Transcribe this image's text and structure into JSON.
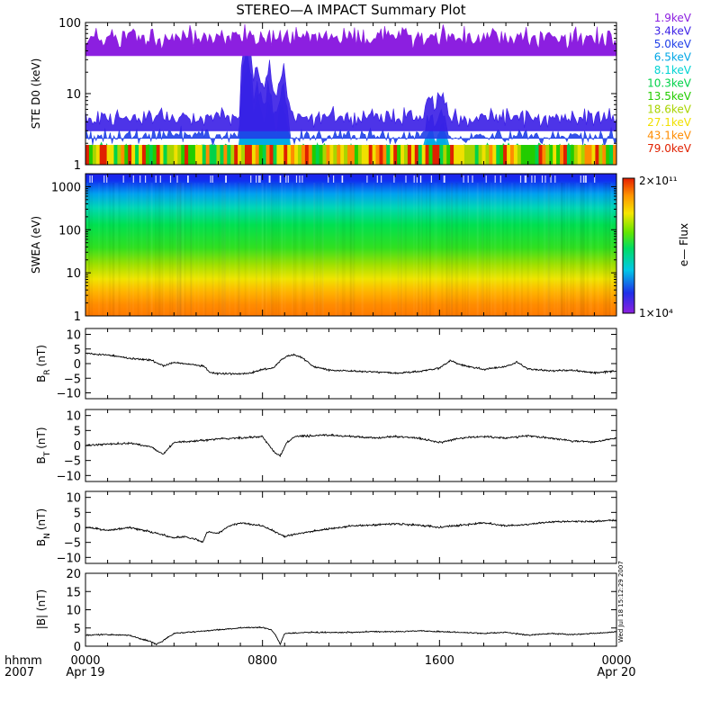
{
  "title": "STEREO—A IMPACT Summary Plot",
  "timestamp_label": "Wed Jul 18 15:12:29 2007",
  "time_axis": {
    "row_label": "hhmm",
    "year_label": "2007",
    "ticks": [
      {
        "label": "0000",
        "sub": "Apr 19",
        "hour": 0
      },
      {
        "label": "0800",
        "sub": "",
        "hour": 8
      },
      {
        "label": "1600",
        "sub": "",
        "hour": 16
      },
      {
        "label": "0000",
        "sub": "Apr 20",
        "hour": 24
      }
    ]
  },
  "colorbar": {
    "max_label": "2×10¹¹",
    "min_label": "1×10⁴",
    "label": "e— Flux"
  },
  "chart_data": [
    {
      "id": "ste",
      "type": "line",
      "ylabel": "STE D0 (keV)",
      "yscale": "log",
      "ylim": [
        1,
        100
      ],
      "yticks": [
        "1",
        "10",
        "100"
      ],
      "yticks_values": [
        1,
        10,
        100
      ],
      "xlim_hours": [
        0,
        24
      ],
      "note": "Multi-channel electron count traces; levels in data units per channel, spikes (hour, value) approximate",
      "channels": [
        {
          "name": "1.9keV",
          "color": "#8c1fe0",
          "base": 62,
          "spread": 0.22
        },
        {
          "name": "3.4keV",
          "color": "#3a1ee6",
          "base": 4.6,
          "spread": 0.18
        },
        {
          "name": "5.0keV",
          "color": "#1f3fe8",
          "base": 3.6,
          "spread": 0.16
        },
        {
          "name": "6.5keV",
          "color": "#00a6e6",
          "base": 2.3,
          "spread": 0.12
        },
        {
          "name": "8.1keV",
          "color": "#00d3d3",
          "base": 1.9,
          "spread": 0.1
        },
        {
          "name": "10.3keV",
          "color": "#00d24a",
          "base": 1.75,
          "spread": 0.08
        },
        {
          "name": "13.5keV",
          "color": "#23cc00",
          "base": 1.6,
          "spread": 0.07
        },
        {
          "name": "18.6keV",
          "color": "#a9d400",
          "base": 1.45,
          "spread": 0.06
        },
        {
          "name": "27.1keV",
          "color": "#f0e000",
          "base": 1.3,
          "spread": 0.06
        },
        {
          "name": "43.1keV",
          "color": "#ff8c00",
          "base": 1.2,
          "spread": 0.05
        },
        {
          "name": "79.0keV",
          "color": "#e02000",
          "base": 1.1,
          "spread": 0.04
        }
      ],
      "events": [
        {
          "hour": 7.3,
          "peak": 90
        },
        {
          "hour": 7.8,
          "peak": 35
        },
        {
          "hour": 8.3,
          "peak": 30
        },
        {
          "hour": 8.9,
          "peak": 28
        },
        {
          "hour": 15.6,
          "peak": 12
        },
        {
          "hour": 16.1,
          "peak": 13
        }
      ]
    },
    {
      "id": "swea",
      "type": "heatmap",
      "ylabel": "SWEA (eV)",
      "yscale": "log",
      "ylim": [
        1,
        2000
      ],
      "yticks": [
        "1",
        "10",
        "100",
        "1000"
      ],
      "yticks_values": [
        1,
        10,
        100,
        1000
      ],
      "xlim_hours": [
        0,
        24
      ],
      "zscale": "log",
      "zlim": [
        10000,
        200000000000
      ],
      "color_stops": [
        "#8c1fe0",
        "#1f2fe8",
        "#00c8e6",
        "#00dc64",
        "#64e600",
        "#f5e600",
        "#ff9600",
        "#e61e00"
      ]
    },
    {
      "id": "br",
      "type": "line",
      "ylabel": "B",
      "ylabel_sub": "R",
      "ylabel_unit": "(nT)",
      "ylim": [
        -12,
        12
      ],
      "yticks": [
        "10",
        "5",
        "0",
        "−5",
        "−10"
      ],
      "yticks_values": [
        10,
        5,
        0,
        -5,
        -10
      ],
      "xlim_hours": [
        0,
        24
      ],
      "hours": [
        0,
        1,
        2,
        3,
        3.5,
        4,
        5,
        5.4,
        5.6,
        6,
        7,
        7.5,
        8,
        8.5,
        8.8,
        9.1,
        9.4,
        9.8,
        10.3,
        11,
        12,
        13,
        14,
        15,
        16,
        16.5,
        17,
        18,
        19,
        19.5,
        20,
        21,
        22,
        23,
        24
      ],
      "values": [
        3.5,
        3,
        1.8,
        1.2,
        -0.8,
        0.5,
        -0.5,
        -1,
        -3,
        -3.5,
        -3.5,
        -3.2,
        -2,
        -1.5,
        1,
        2.5,
        3,
        2,
        -1,
        -2.2,
        -2.5,
        -2.8,
        -3.2,
        -2.8,
        -1.5,
        1,
        -0.5,
        -2,
        -1,
        0.5,
        -1.8,
        -2.5,
        -2.2,
        -3.2,
        -2.5
      ]
    },
    {
      "id": "bt",
      "type": "line",
      "ylabel": "B",
      "ylabel_sub": "T",
      "ylabel_unit": "(nT)",
      "ylim": [
        -12,
        12
      ],
      "yticks": [
        "10",
        "5",
        "0",
        "−5",
        "−10"
      ],
      "yticks_values": [
        10,
        5,
        0,
        -5,
        -10
      ],
      "xlim_hours": [
        0,
        24
      ],
      "hours": [
        0,
        1,
        2,
        3,
        3.5,
        4,
        5,
        6,
        7,
        8,
        8.5,
        8.8,
        9.1,
        9.5,
        10,
        11,
        12,
        13,
        14,
        15,
        16,
        17,
        18,
        19,
        20,
        21,
        22,
        23,
        24
      ],
      "values": [
        0,
        0.5,
        0.8,
        -0.5,
        -3,
        1,
        1.5,
        2.2,
        2.5,
        3,
        -2,
        -3.5,
        1,
        3,
        3.2,
        3.5,
        3,
        2.5,
        3,
        2.5,
        1,
        2.5,
        3,
        2.5,
        3.2,
        2.5,
        1.5,
        1.2,
        2.5
      ]
    },
    {
      "id": "bn",
      "type": "line",
      "ylabel": "B",
      "ylabel_sub": "N",
      "ylabel_unit": "(nT)",
      "ylim": [
        -12,
        12
      ],
      "yticks": [
        "10",
        "5",
        "0",
        "−5",
        "−10"
      ],
      "yticks_values": [
        10,
        5,
        0,
        -5,
        -10
      ],
      "xlim_hours": [
        0,
        24
      ],
      "hours": [
        0,
        1,
        2,
        3,
        3.5,
        4,
        4.5,
        5,
        5.3,
        5.5,
        6,
        6.5,
        7,
        8,
        9,
        10,
        11,
        12,
        13,
        14,
        15,
        16,
        17,
        18,
        19,
        20,
        21,
        22,
        23,
        24
      ],
      "values": [
        0,
        -1,
        0,
        -1.5,
        -2.5,
        -3.5,
        -3,
        -4,
        -5,
        -1.5,
        -2,
        0.5,
        1.5,
        0.5,
        -3,
        -1.5,
        -0.5,
        0.5,
        0.8,
        1.2,
        0.8,
        0,
        0.8,
        1.5,
        0.5,
        1,
        1.8,
        2,
        2,
        2.5
      ]
    },
    {
      "id": "bmag",
      "type": "line",
      "ylabel": "|B| (nT)",
      "ylim": [
        0,
        20
      ],
      "yticks": [
        "20",
        "15",
        "10",
        "5",
        "0"
      ],
      "yticks_values": [
        20,
        15,
        10,
        5,
        0
      ],
      "xlim_hours": [
        0,
        24
      ],
      "hours": [
        0,
        1,
        2,
        2.5,
        3,
        3.2,
        3.5,
        4,
        5,
        6,
        7,
        8,
        8.4,
        8.6,
        8.8,
        9,
        10,
        11,
        12,
        13,
        14,
        15,
        16,
        17,
        18,
        19,
        20,
        21,
        22,
        23,
        24
      ],
      "values": [
        3,
        3.2,
        3,
        2,
        1.2,
        0.5,
        1.5,
        3.5,
        4,
        4.5,
        5,
        5.2,
        4.5,
        3,
        0.5,
        3.5,
        3.8,
        3.8,
        3.8,
        4,
        4,
        4.2,
        4,
        3.8,
        3.5,
        3.8,
        3,
        3.5,
        3.2,
        3.5,
        4
      ]
    }
  ]
}
